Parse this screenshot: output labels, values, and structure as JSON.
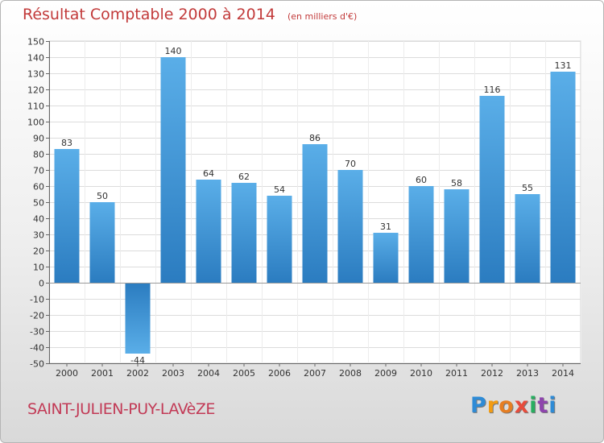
{
  "chart_data": {
    "type": "bar",
    "title": "Résultat Comptable 2000 à 2014",
    "subtitle": "(en milliers d'€)",
    "categories": [
      "2000",
      "2001",
      "2002",
      "2003",
      "2004",
      "2005",
      "2006",
      "2007",
      "2008",
      "2009",
      "2010",
      "2011",
      "2012",
      "2013",
      "2014"
    ],
    "values": [
      83,
      50,
      -44,
      140,
      64,
      62,
      54,
      86,
      70,
      31,
      60,
      58,
      116,
      55,
      131
    ],
    "ylim": [
      -50,
      150
    ],
    "ytick_step": 10,
    "grid": true,
    "bar_color_light": "#5aaee8",
    "bar_color_dark": "#2b7cc0"
  },
  "location": "SAINT-JULIEN-PUY-LAVèZE",
  "brand": {
    "letters": [
      "P",
      "r",
      "o",
      "x",
      "i",
      "t",
      "i"
    ],
    "colors": [
      "#2e8bd6",
      "#f39c12",
      "#e67e22",
      "#e74c3c",
      "#27ae60",
      "#8e44ad",
      "#2e8bd6"
    ]
  }
}
